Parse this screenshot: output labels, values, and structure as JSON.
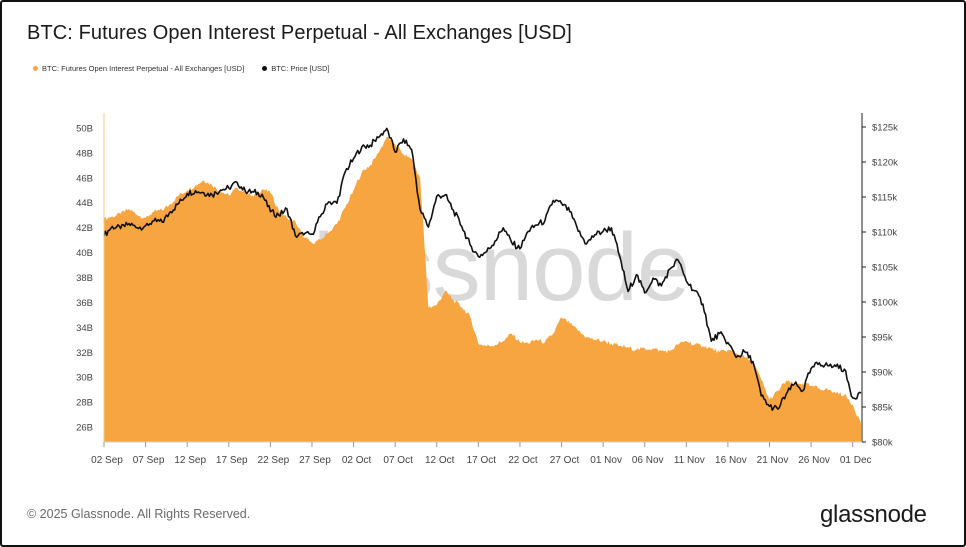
{
  "header": {
    "title": "BTC: Futures Open Interest Perpetual - All Exchanges [USD]"
  },
  "legend": {
    "items": [
      {
        "label": "BTC: Futures Open Interest Perpetual - All Exchanges [USD]",
        "color": "#F7A540"
      },
      {
        "label": "BTC: Price [USD]",
        "color": "#111111"
      }
    ]
  },
  "footer": {
    "copyright": "© 2025 Glassnode. All Rights Reserved.",
    "brand": "glassnode"
  },
  "watermark": "glassnode",
  "colors": {
    "open_interest": "#F7A540",
    "price": "#111111",
    "watermark": "#d9d9d9",
    "axis_text": "#444444"
  },
  "chart_data": {
    "type": "area",
    "title": "BTC: Futures Open Interest Perpetual - All Exchanges [USD]",
    "x_range": [
      "2025-09-02",
      "2025-12-02"
    ],
    "x_ticks": [
      "02 Sep",
      "07 Sep",
      "12 Sep",
      "17 Sep",
      "22 Sep",
      "27 Sep",
      "02 Oct",
      "07 Oct",
      "12 Oct",
      "17 Oct",
      "22 Oct",
      "27 Oct",
      "01 Nov",
      "06 Nov",
      "11 Nov",
      "16 Nov",
      "21 Nov",
      "26 Nov",
      "01 Dec"
    ],
    "y_left": {
      "label": "",
      "unit": "USD (billions)",
      "range": [
        24.8,
        51.2
      ],
      "ticks": [
        "26B",
        "28B",
        "30B",
        "32B",
        "34B",
        "36B",
        "38B",
        "40B",
        "42B",
        "44B",
        "46B",
        "48B",
        "50B"
      ]
    },
    "y_right": {
      "label": "",
      "unit": "USD (thousands)",
      "range": [
        80,
        127
      ],
      "ticks": [
        "$80k",
        "$85k",
        "$90k",
        "$95k",
        "$100k",
        "$105k",
        "$110k",
        "$115k",
        "$120k",
        "$125k"
      ]
    },
    "grid": false,
    "legend_position": "top-left",
    "series": [
      {
        "name": "BTC: Futures Open Interest Perpetual - All Exchanges [USD]",
        "axis": "left",
        "style": "area",
        "points": [
          [
            "2025-09-02",
            42.7
          ],
          [
            "2025-09-03",
            42.9
          ],
          [
            "2025-09-04",
            43.1
          ],
          [
            "2025-09-05",
            43.5
          ],
          [
            "2025-09-06",
            43.0
          ],
          [
            "2025-09-07",
            42.8
          ],
          [
            "2025-09-08",
            43.3
          ],
          [
            "2025-09-09",
            43.4
          ],
          [
            "2025-09-10",
            43.9
          ],
          [
            "2025-09-11",
            44.6
          ],
          [
            "2025-09-12",
            45.0
          ],
          [
            "2025-09-13",
            45.4
          ],
          [
            "2025-09-14",
            45.8
          ],
          [
            "2025-09-15",
            45.4
          ],
          [
            "2025-09-16",
            44.9
          ],
          [
            "2025-09-17",
            44.6
          ],
          [
            "2025-09-18",
            45.2
          ],
          [
            "2025-09-19",
            44.8
          ],
          [
            "2025-09-20",
            44.5
          ],
          [
            "2025-09-21",
            45.1
          ],
          [
            "2025-09-22",
            44.8
          ],
          [
            "2025-09-23",
            43.4
          ],
          [
            "2025-09-24",
            42.8
          ],
          [
            "2025-09-25",
            42.5
          ],
          [
            "2025-09-26",
            41.2
          ],
          [
            "2025-09-27",
            40.8
          ],
          [
            "2025-09-28",
            41.0
          ],
          [
            "2025-09-29",
            41.6
          ],
          [
            "2025-09-30",
            42.3
          ],
          [
            "2025-10-01",
            43.6
          ],
          [
            "2025-10-02",
            45.0
          ],
          [
            "2025-10-03",
            46.5
          ],
          [
            "2025-10-04",
            47.0
          ],
          [
            "2025-10-05",
            48.0
          ],
          [
            "2025-10-06",
            49.3
          ],
          [
            "2025-10-07",
            48.7
          ],
          [
            "2025-10-08",
            47.9
          ],
          [
            "2025-10-09",
            47.5
          ],
          [
            "2025-10-10",
            46.0
          ],
          [
            "2025-10-11",
            35.6
          ],
          [
            "2025-10-12",
            35.8
          ],
          [
            "2025-10-13",
            36.9
          ],
          [
            "2025-10-14",
            36.2
          ],
          [
            "2025-10-15",
            35.6
          ],
          [
            "2025-10-16",
            34.9
          ],
          [
            "2025-10-17",
            32.7
          ],
          [
            "2025-10-18",
            32.5
          ],
          [
            "2025-10-19",
            32.6
          ],
          [
            "2025-10-20",
            32.9
          ],
          [
            "2025-10-21",
            33.5
          ],
          [
            "2025-10-22",
            32.8
          ],
          [
            "2025-10-23",
            32.7
          ],
          [
            "2025-10-24",
            33.0
          ],
          [
            "2025-10-25",
            32.8
          ],
          [
            "2025-10-26",
            33.5
          ],
          [
            "2025-10-27",
            34.8
          ],
          [
            "2025-10-28",
            34.3
          ],
          [
            "2025-10-29",
            33.7
          ],
          [
            "2025-10-30",
            33.2
          ],
          [
            "2025-10-31",
            33.0
          ],
          [
            "2025-11-01",
            32.9
          ],
          [
            "2025-11-02",
            32.7
          ],
          [
            "2025-11-03",
            32.5
          ],
          [
            "2025-11-04",
            32.4
          ],
          [
            "2025-11-05",
            32.2
          ],
          [
            "2025-11-06",
            32.3
          ],
          [
            "2025-11-07",
            32.3
          ],
          [
            "2025-11-08",
            32.1
          ],
          [
            "2025-11-09",
            32.1
          ],
          [
            "2025-11-10",
            32.6
          ],
          [
            "2025-11-11",
            32.9
          ],
          [
            "2025-11-12",
            32.6
          ],
          [
            "2025-11-13",
            32.5
          ],
          [
            "2025-11-14",
            32.3
          ],
          [
            "2025-11-15",
            32.0
          ],
          [
            "2025-11-16",
            32.2
          ],
          [
            "2025-11-17",
            31.9
          ],
          [
            "2025-11-18",
            31.6
          ],
          [
            "2025-11-19",
            31.2
          ],
          [
            "2025-11-20",
            29.8
          ],
          [
            "2025-11-21",
            28.2
          ],
          [
            "2025-11-22",
            28.9
          ],
          [
            "2025-11-23",
            29.7
          ],
          [
            "2025-11-24",
            29.4
          ],
          [
            "2025-11-25",
            29.5
          ],
          [
            "2025-11-26",
            29.3
          ],
          [
            "2025-11-27",
            29.1
          ],
          [
            "2025-11-28",
            29.0
          ],
          [
            "2025-11-29",
            28.7
          ],
          [
            "2025-11-30",
            28.6
          ],
          [
            "2025-12-01",
            27.8
          ],
          [
            "2025-12-02",
            26.3
          ]
        ]
      },
      {
        "name": "BTC: Price [USD]",
        "axis": "right",
        "style": "line",
        "points": [
          [
            "2025-09-02",
            109.5
          ],
          [
            "2025-09-03",
            110.8
          ],
          [
            "2025-09-04",
            110.5
          ],
          [
            "2025-09-05",
            111.2
          ],
          [
            "2025-09-06",
            110.6
          ],
          [
            "2025-09-07",
            110.9
          ],
          [
            "2025-09-08",
            111.6
          ],
          [
            "2025-09-09",
            111.4
          ],
          [
            "2025-09-10",
            112.9
          ],
          [
            "2025-09-11",
            114.1
          ],
          [
            "2025-09-12",
            115.5
          ],
          [
            "2025-09-13",
            115.9
          ],
          [
            "2025-09-14",
            115.6
          ],
          [
            "2025-09-15",
            115.3
          ],
          [
            "2025-09-16",
            116.0
          ],
          [
            "2025-09-17",
            116.3
          ],
          [
            "2025-09-18",
            117.1
          ],
          [
            "2025-09-19",
            115.8
          ],
          [
            "2025-09-20",
            115.7
          ],
          [
            "2025-09-21",
            115.4
          ],
          [
            "2025-09-22",
            112.9
          ],
          [
            "2025-09-23",
            112.4
          ],
          [
            "2025-09-24",
            113.3
          ],
          [
            "2025-09-25",
            109.5
          ],
          [
            "2025-09-26",
            109.6
          ],
          [
            "2025-09-27",
            109.7
          ],
          [
            "2025-09-28",
            112.2
          ],
          [
            "2025-09-29",
            114.3
          ],
          [
            "2025-09-30",
            114.1
          ],
          [
            "2025-10-01",
            118.6
          ],
          [
            "2025-10-02",
            120.5
          ],
          [
            "2025-10-03",
            122.2
          ],
          [
            "2025-10-04",
            122.4
          ],
          [
            "2025-10-05",
            123.5
          ],
          [
            "2025-10-06",
            124.8
          ],
          [
            "2025-10-07",
            121.4
          ],
          [
            "2025-10-08",
            123.3
          ],
          [
            "2025-10-09",
            121.7
          ],
          [
            "2025-10-10",
            113.2
          ],
          [
            "2025-10-11",
            110.7
          ],
          [
            "2025-10-12",
            115.1
          ],
          [
            "2025-10-13",
            115.3
          ],
          [
            "2025-10-14",
            113.1
          ],
          [
            "2025-10-15",
            110.8
          ],
          [
            "2025-10-16",
            108.2
          ],
          [
            "2025-10-17",
            106.5
          ],
          [
            "2025-10-18",
            107.2
          ],
          [
            "2025-10-19",
            108.7
          ],
          [
            "2025-10-20",
            110.6
          ],
          [
            "2025-10-21",
            108.5
          ],
          [
            "2025-10-22",
            107.6
          ],
          [
            "2025-10-23",
            110.1
          ],
          [
            "2025-10-24",
            111.0
          ],
          [
            "2025-10-25",
            111.6
          ],
          [
            "2025-10-26",
            114.5
          ],
          [
            "2025-10-27",
            114.1
          ],
          [
            "2025-10-28",
            112.9
          ],
          [
            "2025-10-29",
            110.1
          ],
          [
            "2025-10-30",
            108.3
          ],
          [
            "2025-10-31",
            109.6
          ],
          [
            "2025-11-01",
            110.1
          ],
          [
            "2025-11-02",
            110.6
          ],
          [
            "2025-11-03",
            106.5
          ],
          [
            "2025-11-04",
            101.5
          ],
          [
            "2025-11-05",
            103.9
          ],
          [
            "2025-11-06",
            101.3
          ],
          [
            "2025-11-07",
            103.4
          ],
          [
            "2025-11-08",
            102.3
          ],
          [
            "2025-11-09",
            104.7
          ],
          [
            "2025-11-10",
            106.0
          ],
          [
            "2025-11-11",
            103.0
          ],
          [
            "2025-11-12",
            101.6
          ],
          [
            "2025-11-13",
            99.7
          ],
          [
            "2025-11-14",
            94.4
          ],
          [
            "2025-11-15",
            95.5
          ],
          [
            "2025-11-16",
            94.2
          ],
          [
            "2025-11-17",
            92.1
          ],
          [
            "2025-11-18",
            92.9
          ],
          [
            "2025-11-19",
            91.5
          ],
          [
            "2025-11-20",
            86.6
          ],
          [
            "2025-11-21",
            85.1
          ],
          [
            "2025-11-22",
            84.7
          ],
          [
            "2025-11-23",
            86.8
          ],
          [
            "2025-11-24",
            88.3
          ],
          [
            "2025-11-25",
            87.3
          ],
          [
            "2025-11-26",
            90.5
          ],
          [
            "2025-11-27",
            91.3
          ],
          [
            "2025-11-28",
            90.9
          ],
          [
            "2025-11-29",
            90.8
          ],
          [
            "2025-11-30",
            90.4
          ],
          [
            "2025-12-01",
            86.3
          ],
          [
            "2025-12-02",
            87.0
          ]
        ]
      }
    ]
  }
}
